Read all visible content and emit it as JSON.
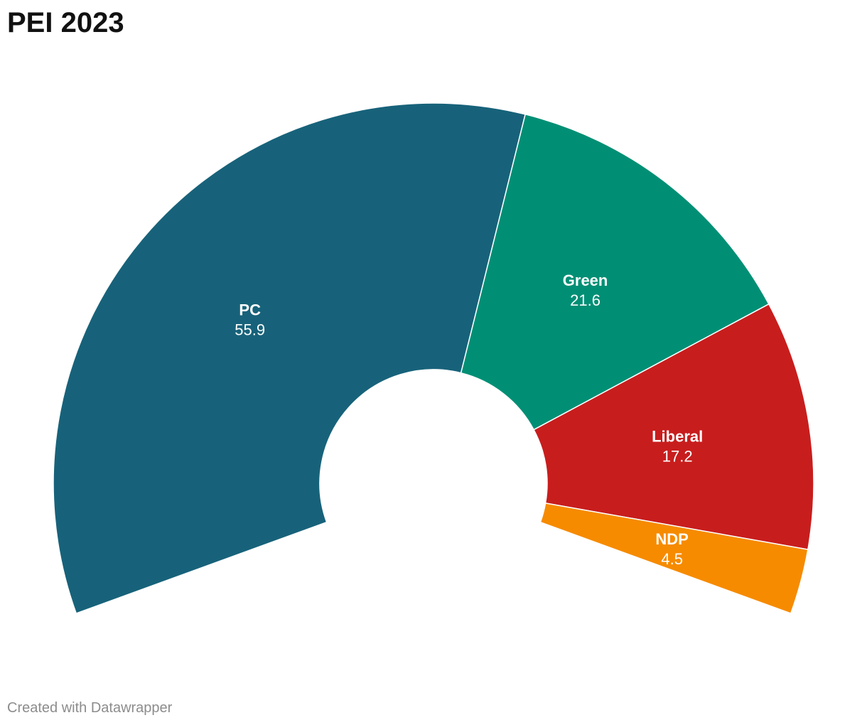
{
  "chart_data": {
    "type": "pie",
    "style": "half-donut",
    "title": "PEI 2023",
    "slices": [
      {
        "label": "PC",
        "value": 55.9,
        "value_label": "55.9",
        "color": "#17627a"
      },
      {
        "label": "Green",
        "value": 21.6,
        "value_label": "21.6",
        "color": "#008f75"
      },
      {
        "label": "Liberal",
        "value": 17.2,
        "value_label": "17.2",
        "color": "#c81d1d"
      },
      {
        "label": "NDP",
        "value": 4.5,
        "value_label": "4.5",
        "color": "#f68b00"
      }
    ]
  },
  "footer": {
    "credit": "Created with Datawrapper"
  }
}
